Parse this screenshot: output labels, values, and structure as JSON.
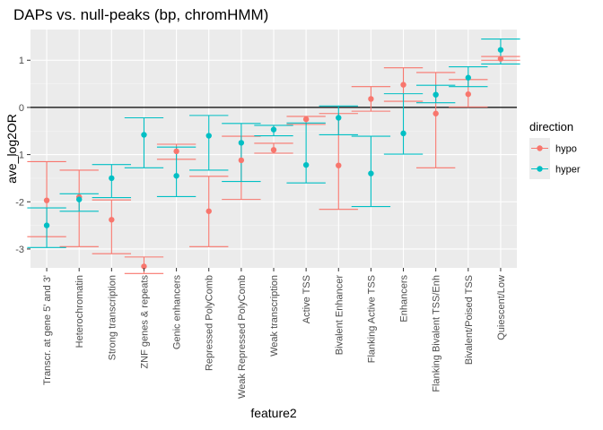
{
  "chart_data": {
    "type": "errorbar-point",
    "title": "DAPs vs. null-peaks (bp, chromHMM)",
    "xlabel": "feature2",
    "ylabel": "ave_log2OR",
    "ylim": [
      -3.4,
      1.65
    ],
    "yticks": [
      -3,
      -2,
      -1,
      0,
      1
    ],
    "grid": true,
    "reference_line": 0,
    "legend_title": "direction",
    "legend_position": "right",
    "categories": [
      "Transcr. at gene 5' and 3'",
      "Heterochromatin",
      "Strong transcription",
      "ZNF genes & repeats",
      "Genic enhancers",
      "Repressed PolyComb",
      "Weak Repressed PolyComb",
      "Weak transcription",
      "Active TSS",
      "Bivalent Enhancer",
      "Flanking Active TSS",
      "Enhancers",
      "Flanking Bivalent TSS/Enh",
      "Bivalent/Poised TSS",
      "Quiescent/Low"
    ],
    "series": [
      {
        "name": "hypo",
        "color": "#F8766D",
        "values": [
          -1.97,
          -1.9,
          -2.38,
          -3.37,
          -0.93,
          -2.2,
          -1.12,
          -0.9,
          -0.25,
          -1.23,
          0.18,
          0.48,
          -0.13,
          0.28,
          1.03
        ],
        "lower": [
          -2.74,
          -2.95,
          -3.1,
          -3.52,
          -1.1,
          -2.95,
          -1.95,
          -0.97,
          -0.36,
          -2.16,
          -0.08,
          0.13,
          -1.28,
          0.01,
          1.0
        ],
        "upper": [
          -1.15,
          -1.33,
          -1.96,
          -3.17,
          -0.78,
          -1.46,
          -0.61,
          -0.76,
          -0.19,
          -0.13,
          0.44,
          0.84,
          0.74,
          0.59,
          1.08
        ]
      },
      {
        "name": "hyper",
        "color": "#00BFC4",
        "values": [
          -2.5,
          -1.95,
          -1.5,
          -0.58,
          -1.45,
          -0.6,
          -0.75,
          -0.47,
          -1.22,
          -0.22,
          -1.4,
          -0.55,
          0.27,
          0.63,
          1.22
        ],
        "lower": [
          -2.97,
          -2.2,
          -1.91,
          -1.28,
          -1.89,
          -1.33,
          -1.57,
          -0.6,
          -1.6,
          -0.58,
          -2.1,
          -0.99,
          0.1,
          0.44,
          0.92
        ],
        "upper": [
          -2.13,
          -1.83,
          -1.21,
          -0.22,
          -0.84,
          -0.17,
          -0.34,
          -0.38,
          -0.33,
          0.03,
          -0.61,
          0.29,
          0.47,
          0.86,
          1.45
        ]
      }
    ]
  }
}
